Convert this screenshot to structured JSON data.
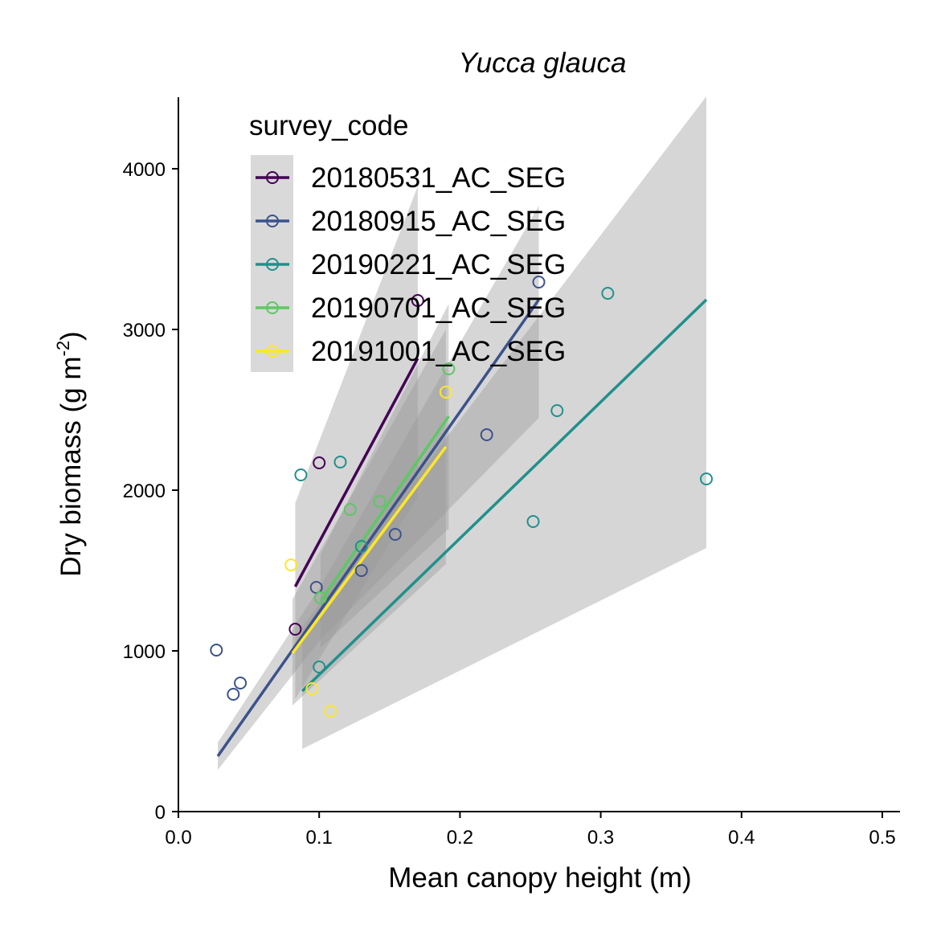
{
  "chart_data": {
    "type": "scatter",
    "title": "Yucca glauca",
    "xlabel": "Mean canopy height (m)",
    "ylabel_main": "Dry biomass (g m",
    "ylabel_sup": "-2",
    "ylabel_close": ")",
    "xlim": [
      0,
      0.515
    ],
    "ylim": [
      0,
      4450
    ],
    "x_ticks": [
      0.0,
      0.1,
      0.2,
      0.3,
      0.4,
      0.5
    ],
    "x_tick_labels": [
      "0.0",
      "0.1",
      "0.2",
      "0.3",
      "0.4",
      "0.5"
    ],
    "y_ticks": [
      0,
      1000,
      2000,
      3000,
      4000
    ],
    "y_tick_labels": [
      "0",
      "1000",
      "2000",
      "3000",
      "4000"
    ],
    "grid": false,
    "legend": {
      "title": "survey_code",
      "placement": "top-left"
    },
    "series": [
      {
        "name": "20180531_AC_SEG",
        "color": "#440154",
        "points": [
          [
            0.083,
            1135
          ],
          [
            0.1,
            2170
          ],
          [
            0.17,
            3180
          ]
        ],
        "fit": [
          [
            0.083,
            1400
          ],
          [
            0.17,
            2820
          ]
        ],
        "band": [
          [
            0.083,
            1920,
            700
          ],
          [
            0.17,
            3890,
            1960
          ]
        ]
      },
      {
        "name": "20180915_AC_SEG",
        "color": "#3B528B",
        "points": [
          [
            0.027,
            1005
          ],
          [
            0.039,
            730
          ],
          [
            0.044,
            800
          ],
          [
            0.098,
            1395
          ],
          [
            0.13,
            1500
          ],
          [
            0.154,
            1725
          ],
          [
            0.219,
            2345
          ],
          [
            0.256,
            3295
          ]
        ],
        "fit": [
          [
            0.028,
            345
          ],
          [
            0.256,
            3185
          ]
        ],
        "band": [
          [
            0.028,
            430,
            260
          ],
          [
            0.1,
            1390,
            1060
          ],
          [
            0.256,
            3770,
            2450
          ]
        ]
      },
      {
        "name": "20190221_AC_SEG",
        "color": "#21908C",
        "points": [
          [
            0.087,
            2095
          ],
          [
            0.1,
            900
          ],
          [
            0.115,
            2175
          ],
          [
            0.13,
            1650
          ],
          [
            0.252,
            1805
          ],
          [
            0.269,
            2495
          ],
          [
            0.305,
            3225
          ],
          [
            0.375,
            2070
          ]
        ],
        "fit": [
          [
            0.088,
            750
          ],
          [
            0.375,
            3185
          ]
        ],
        "band": [
          [
            0.088,
            1150,
            390
          ],
          [
            0.375,
            4450,
            1640
          ]
        ]
      },
      {
        "name": "20190701_AC_SEG",
        "color": "#5DC863",
        "points": [
          [
            0.101,
            1330
          ],
          [
            0.122,
            1880
          ],
          [
            0.143,
            1930
          ],
          [
            0.192,
            2755
          ]
        ],
        "fit": [
          [
            0.101,
            1310
          ],
          [
            0.192,
            2460
          ]
        ],
        "band": [
          [
            0.101,
            1600,
            1020
          ],
          [
            0.192,
            3160,
            1760
          ]
        ]
      },
      {
        "name": "20191001_AC_SEG",
        "color": "#FDE725",
        "points": [
          [
            0.08,
            1535
          ],
          [
            0.095,
            765
          ],
          [
            0.108,
            625
          ],
          [
            0.19,
            2610
          ]
        ],
        "fit": [
          [
            0.081,
            985
          ],
          [
            0.19,
            2270
          ]
        ],
        "band": [
          [
            0.081,
            1320,
            660
          ],
          [
            0.19,
            3000,
            1540
          ]
        ]
      }
    ]
  }
}
